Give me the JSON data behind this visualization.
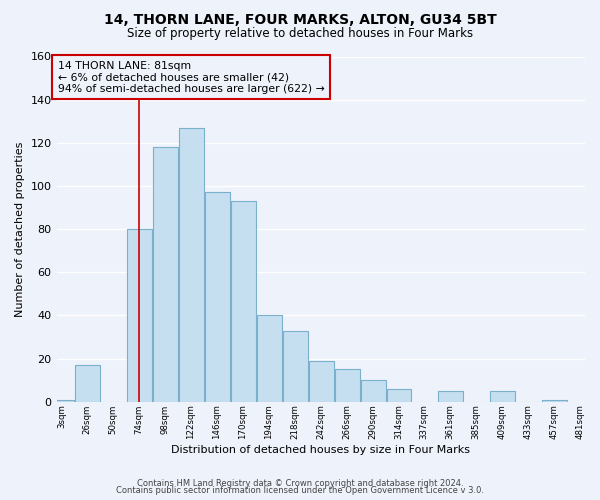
{
  "title": "14, THORN LANE, FOUR MARKS, ALTON, GU34 5BT",
  "subtitle": "Size of property relative to detached houses in Four Marks",
  "xlabel": "Distribution of detached houses by size in Four Marks",
  "ylabel": "Number of detached properties",
  "bar_color": "#c5dff0",
  "bar_edge_color": "#7ab0cc",
  "bg_color": "#eef2fa",
  "grid_color": "#ffffff",
  "annotation_line_color": "#cc0000",
  "annotation_box_edge_color": "#cc0000",
  "annotation_text": "14 THORN LANE: 81sqm\n← 6% of detached houses are smaller (42)\n94% of semi-detached houses are larger (622) →",
  "footer1": "Contains HM Land Registry data © Crown copyright and database right 2024.",
  "footer2": "Contains public sector information licensed under the Open Government Licence v 3.0.",
  "property_line_x": 74,
  "bins": [
    3,
    26,
    50,
    74,
    98,
    122,
    146,
    170,
    194,
    218,
    242,
    266,
    290,
    314,
    337,
    361,
    385,
    409,
    433,
    457,
    481
  ],
  "counts": [
    1,
    17,
    0,
    80,
    118,
    127,
    97,
    93,
    40,
    33,
    19,
    15,
    10,
    6,
    0,
    5,
    0,
    5,
    0,
    1
  ],
  "tick_labels": [
    "3sqm",
    "26sqm",
    "50sqm",
    "74sqm",
    "98sqm",
    "122sqm",
    "146sqm",
    "170sqm",
    "194sqm",
    "218sqm",
    "242sqm",
    "266sqm",
    "290sqm",
    "314sqm",
    "337sqm",
    "361sqm",
    "385sqm",
    "409sqm",
    "433sqm",
    "457sqm",
    "481sqm"
  ],
  "ylim": [
    0,
    160
  ],
  "yticks": [
    0,
    20,
    40,
    60,
    80,
    100,
    120,
    140,
    160
  ]
}
